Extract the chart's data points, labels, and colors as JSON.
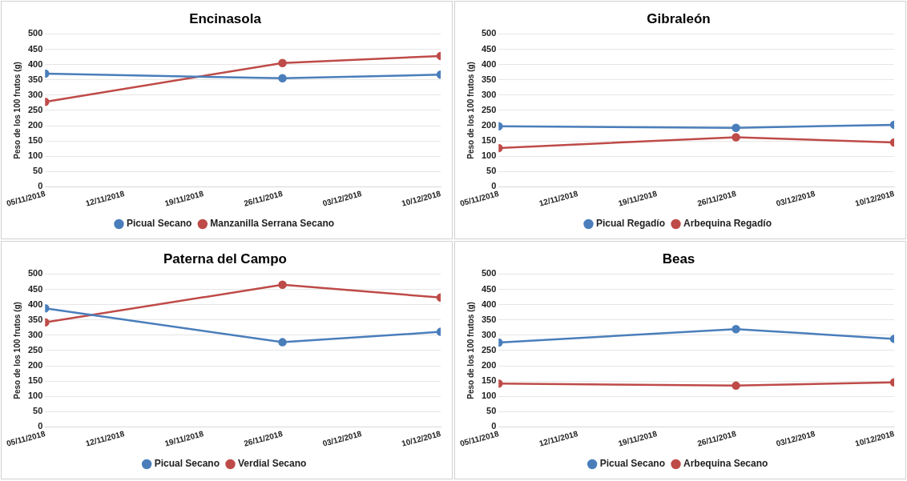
{
  "chart_data": [
    {
      "type": "line",
      "title": "Encinasola",
      "ylabel": "Peso de los 100 frutos (g)",
      "x": [
        "2018-11-05",
        "2018-11-26",
        "2018-12-10"
      ],
      "xlim": [
        "2018-11-05",
        "2018-12-10"
      ],
      "xticks": [
        {
          "value": "2018-11-05",
          "label": "05/11/2018"
        },
        {
          "value": "2018-11-12",
          "label": "12/11/2018"
        },
        {
          "value": "2018-11-19",
          "label": "19/11/2018"
        },
        {
          "value": "2018-11-26",
          "label": "26/11/2018"
        },
        {
          "value": "2018-12-03",
          "label": "03/12/2018"
        },
        {
          "value": "2018-12-10",
          "label": "10/12/2018"
        }
      ],
      "ylim": [
        0,
        500
      ],
      "yticks": [
        0,
        50,
        100,
        150,
        200,
        250,
        300,
        350,
        400,
        450,
        500
      ],
      "grid": "y",
      "legend": "bottom",
      "marker": "circle",
      "series": [
        {
          "name": "Picual Secano",
          "color": "#4a7ebb",
          "values": [
            370,
            355,
            367
          ]
        },
        {
          "name": "Manzanilla Serrana Secano",
          "color": "#be4b48",
          "values": [
            278,
            405,
            428
          ]
        }
      ]
    },
    {
      "type": "line",
      "title": "Gibraleón",
      "ylabel": "Peso de los 100 frutos (g)",
      "x": [
        "2018-11-05",
        "2018-11-26",
        "2018-12-10"
      ],
      "xlim": [
        "2018-11-05",
        "2018-12-10"
      ],
      "xticks": [
        {
          "value": "2018-11-05",
          "label": "05/11/2018"
        },
        {
          "value": "2018-11-12",
          "label": "12/11/2018"
        },
        {
          "value": "2018-11-19",
          "label": "19/11/2018"
        },
        {
          "value": "2018-11-26",
          "label": "26/11/2018"
        },
        {
          "value": "2018-12-03",
          "label": "03/12/2018"
        },
        {
          "value": "2018-12-10",
          "label": "10/12/2018"
        }
      ],
      "ylim": [
        0,
        500
      ],
      "yticks": [
        0,
        50,
        100,
        150,
        200,
        250,
        300,
        350,
        400,
        450,
        500
      ],
      "grid": "y",
      "legend": "bottom",
      "marker": "circle",
      "series": [
        {
          "name": "Picual Regadío",
          "color": "#4a7ebb",
          "values": [
            198,
            193,
            203
          ]
        },
        {
          "name": "Arbequina Regadío",
          "color": "#be4b48",
          "values": [
            127,
            162,
            145
          ]
        }
      ]
    },
    {
      "type": "line",
      "title": "Paterna del Campo",
      "ylabel": "Peso de los 100 frutos (g)",
      "x": [
        "2018-11-05",
        "2018-11-26",
        "2018-12-10"
      ],
      "xlim": [
        "2018-11-05",
        "2018-12-10"
      ],
      "xticks": [
        {
          "value": "2018-11-05",
          "label": "05/11/2018"
        },
        {
          "value": "2018-11-12",
          "label": "12/11/2018"
        },
        {
          "value": "2018-11-19",
          "label": "19/11/2018"
        },
        {
          "value": "2018-11-26",
          "label": "26/11/2018"
        },
        {
          "value": "2018-12-03",
          "label": "03/12/2018"
        },
        {
          "value": "2018-12-10",
          "label": "10/12/2018"
        }
      ],
      "ylim": [
        0,
        500
      ],
      "yticks": [
        0,
        50,
        100,
        150,
        200,
        250,
        300,
        350,
        400,
        450,
        500
      ],
      "grid": "y",
      "legend": "bottom",
      "marker": "circle",
      "series": [
        {
          "name": "Picual Secano",
          "color": "#4a7ebb",
          "values": [
            388,
            277,
            311
          ]
        },
        {
          "name": "Verdial Secano",
          "color": "#be4b48",
          "values": [
            342,
            465,
            423
          ]
        }
      ]
    },
    {
      "type": "line",
      "title": "Beas",
      "ylabel": "Peso de los 100 frutos (g)",
      "x": [
        "2018-11-05",
        "2018-11-26",
        "2018-12-10"
      ],
      "xlim": [
        "2018-11-05",
        "2018-12-10"
      ],
      "xticks": [
        {
          "value": "2018-11-05",
          "label": "05/11/2018"
        },
        {
          "value": "2018-11-12",
          "label": "12/11/2018"
        },
        {
          "value": "2018-11-19",
          "label": "19/11/2018"
        },
        {
          "value": "2018-11-26",
          "label": "26/11/2018"
        },
        {
          "value": "2018-12-03",
          "label": "03/12/2018"
        },
        {
          "value": "2018-12-10",
          "label": "10/12/2018"
        }
      ],
      "ylim": [
        0,
        500
      ],
      "yticks": [
        0,
        50,
        100,
        150,
        200,
        250,
        300,
        350,
        400,
        450,
        500
      ],
      "grid": "y",
      "legend": "bottom",
      "marker": "circle",
      "series": [
        {
          "name": "Picual Secano",
          "color": "#4a7ebb",
          "values": [
            276,
            320,
            288
          ]
        },
        {
          "name": "Arbequina Secano",
          "color": "#be4b48",
          "values": [
            142,
            135,
            146
          ]
        }
      ]
    }
  ]
}
